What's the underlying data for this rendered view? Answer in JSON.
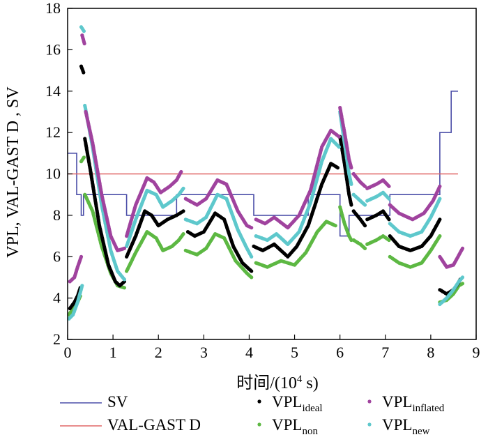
{
  "chart_data": {
    "type": "line",
    "xlabel_main": "时间/(10",
    "xlabel_sup": "4",
    "xlabel_tail": " s)",
    "ylabel": "VPL, VAL-GAST D , SV",
    "xlim": [
      0,
      9
    ],
    "ylim": [
      2,
      18
    ],
    "xticks": [
      0,
      1,
      2,
      3,
      4,
      5,
      6,
      7,
      8,
      9
    ],
    "yticks": [
      2,
      4,
      6,
      8,
      10,
      12,
      14,
      16,
      18
    ],
    "legend_position": "bottom",
    "series": [
      {
        "key": "sv",
        "name": "SV",
        "sub": "",
        "kind": "step",
        "color": "#4b4ea8",
        "points": [
          [
            0,
            11
          ],
          [
            0.2,
            11
          ],
          [
            0.2,
            9
          ],
          [
            0.3,
            9
          ],
          [
            0.3,
            8
          ],
          [
            0.35,
            8
          ],
          [
            0.35,
            9
          ],
          [
            1.3,
            9
          ],
          [
            1.3,
            8
          ],
          [
            2.4,
            8
          ],
          [
            2.4,
            9
          ],
          [
            4.1,
            9
          ],
          [
            4.1,
            8
          ],
          [
            5.3,
            8
          ],
          [
            5.3,
            9
          ],
          [
            6.0,
            9
          ],
          [
            6.0,
            7
          ],
          [
            6.2,
            7
          ],
          [
            6.2,
            8
          ],
          [
            7.1,
            8
          ],
          [
            7.1,
            9
          ],
          [
            8.2,
            9
          ],
          [
            8.2,
            12
          ],
          [
            8.45,
            12
          ],
          [
            8.45,
            14
          ],
          [
            8.6,
            14
          ]
        ]
      },
      {
        "key": "val",
        "name": "VAL-GAST D",
        "sub": "",
        "kind": "hline",
        "color": "#e06666",
        "y": 10,
        "x_range": [
          0,
          8.6
        ]
      },
      {
        "key": "ideal",
        "name": "VPL",
        "sub": "ideal",
        "kind": "dots",
        "color": "#000000",
        "segments": [
          [
            [
              0.05,
              3.5
            ],
            [
              0.15,
              3.8
            ],
            [
              0.22,
              4.1
            ],
            [
              0.28,
              4.5
            ]
          ],
          [
            [
              0.3,
              15.2
            ],
            [
              0.35,
              14.9
            ]
          ],
          [
            [
              0.38,
              11.7
            ],
            [
              0.5,
              10.2
            ],
            [
              0.7,
              7.5
            ],
            [
              0.9,
              5.6
            ],
            [
              1.05,
              4.8
            ],
            [
              1.15,
              4.6
            ],
            [
              1.25,
              4.8
            ]
          ],
          [
            [
              1.3,
              6.0
            ],
            [
              1.5,
              7.0
            ],
            [
              1.7,
              8.2
            ],
            [
              1.85,
              8.0
            ],
            [
              2.0,
              7.5
            ],
            [
              2.2,
              7.8
            ],
            [
              2.4,
              8.0
            ],
            [
              2.55,
              8.2
            ]
          ],
          [
            [
              2.65,
              7.2
            ],
            [
              2.8,
              7.0
            ],
            [
              3.0,
              7.2
            ],
            [
              3.25,
              8.1
            ],
            [
              3.45,
              7.8
            ],
            [
              3.65,
              6.5
            ],
            [
              3.85,
              5.7
            ],
            [
              4.05,
              5.3
            ]
          ],
          [
            [
              4.1,
              6.5
            ],
            [
              4.3,
              6.3
            ],
            [
              4.55,
              6.6
            ],
            [
              4.85,
              6.0
            ],
            [
              5.05,
              6.5
            ],
            [
              5.3,
              7.5
            ],
            [
              5.6,
              9.5
            ],
            [
              5.8,
              10.5
            ],
            [
              5.95,
              10.3
            ]
          ],
          [
            [
              6.0,
              11.8
            ],
            [
              6.1,
              10.5
            ],
            [
              6.2,
              9.0
            ],
            [
              6.25,
              8.5
            ]
          ],
          [
            [
              6.3,
              8.2
            ],
            [
              6.45,
              7.8
            ],
            [
              6.55,
              7.5
            ]
          ],
          [
            [
              6.6,
              7.8
            ],
            [
              6.8,
              8.0
            ],
            [
              6.95,
              8.2
            ],
            [
              7.08,
              7.8
            ]
          ],
          [
            [
              7.1,
              7.0
            ],
            [
              7.3,
              6.5
            ],
            [
              7.55,
              6.3
            ],
            [
              7.8,
              6.5
            ],
            [
              8.0,
              7.0
            ],
            [
              8.2,
              7.8
            ]
          ],
          [
            [
              8.2,
              4.4
            ],
            [
              8.35,
              4.2
            ],
            [
              8.5,
              4.4
            ],
            [
              8.6,
              4.7
            ],
            [
              8.65,
              4.9
            ]
          ]
        ]
      },
      {
        "key": "inflated",
        "name": "VPL",
        "sub": "inflated",
        "kind": "dots",
        "color": "#a0439e",
        "segments": [
          [
            [
              0.05,
              4.8
            ],
            [
              0.15,
              5.0
            ],
            [
              0.22,
              5.5
            ],
            [
              0.3,
              6.0
            ]
          ],
          [
            [
              0.32,
              16.7
            ],
            [
              0.37,
              16.3
            ]
          ],
          [
            [
              0.4,
              13.0
            ],
            [
              0.55,
              11.5
            ],
            [
              0.75,
              9.0
            ],
            [
              0.95,
              7.0
            ],
            [
              1.1,
              6.3
            ],
            [
              1.25,
              6.4
            ]
          ],
          [
            [
              1.3,
              7.0
            ],
            [
              1.5,
              8.5
            ],
            [
              1.75,
              9.8
            ],
            [
              1.9,
              9.6
            ],
            [
              2.05,
              9.1
            ],
            [
              2.25,
              9.4
            ],
            [
              2.4,
              9.7
            ],
            [
              2.5,
              10.1
            ]
          ],
          [
            [
              2.6,
              8.8
            ],
            [
              2.85,
              8.5
            ],
            [
              3.05,
              8.8
            ],
            [
              3.3,
              9.7
            ],
            [
              3.5,
              9.5
            ],
            [
              3.75,
              8.2
            ],
            [
              3.95,
              7.5
            ],
            [
              4.05,
              7.4
            ]
          ],
          [
            [
              4.15,
              7.8
            ],
            [
              4.35,
              7.6
            ],
            [
              4.55,
              7.9
            ],
            [
              4.85,
              7.4
            ],
            [
              5.1,
              8.0
            ],
            [
              5.35,
              9.2
            ],
            [
              5.6,
              11.3
            ],
            [
              5.8,
              12.1
            ],
            [
              5.98,
              11.8
            ]
          ],
          [
            [
              6.0,
              13.2
            ],
            [
              6.1,
              12.0
            ],
            [
              6.2,
              10.7
            ],
            [
              6.25,
              10.3
            ]
          ],
          [
            [
              6.3,
              10.0
            ],
            [
              6.45,
              9.6
            ],
            [
              6.55,
              9.4
            ]
          ],
          [
            [
              6.6,
              9.3
            ],
            [
              6.8,
              9.5
            ],
            [
              6.95,
              9.7
            ],
            [
              7.08,
              9.4
            ]
          ],
          [
            [
              7.1,
              8.5
            ],
            [
              7.3,
              8.1
            ],
            [
              7.6,
              7.8
            ],
            [
              7.85,
              8.1
            ],
            [
              8.05,
              8.7
            ],
            [
              8.2,
              9.4
            ]
          ],
          [
            [
              8.2,
              6.0
            ],
            [
              8.35,
              5.5
            ],
            [
              8.5,
              5.6
            ],
            [
              8.6,
              6.0
            ],
            [
              8.7,
              6.4
            ]
          ]
        ]
      },
      {
        "key": "non",
        "name": "VPL",
        "sub": "non",
        "kind": "dots",
        "color": "#5db843",
        "segments": [
          [
            [
              0.03,
              3.2
            ],
            [
              0.12,
              3.5
            ],
            [
              0.22,
              3.8
            ],
            [
              0.28,
              4.1
            ]
          ],
          [
            [
              0.3,
              10.6
            ],
            [
              0.36,
              10.8
            ]
          ],
          [
            [
              0.38,
              9.0
            ],
            [
              0.55,
              8.2
            ],
            [
              0.75,
              6.5
            ],
            [
              0.95,
              5.2
            ],
            [
              1.1,
              4.6
            ],
            [
              1.25,
              4.5
            ]
          ],
          [
            [
              1.3,
              5.3
            ],
            [
              1.5,
              6.2
            ],
            [
              1.75,
              7.2
            ],
            [
              1.95,
              6.9
            ],
            [
              2.1,
              6.3
            ],
            [
              2.3,
              6.5
            ],
            [
              2.45,
              6.8
            ],
            [
              2.55,
              7.1
            ]
          ],
          [
            [
              2.6,
              6.3
            ],
            [
              2.85,
              6.1
            ],
            [
              3.05,
              6.4
            ],
            [
              3.25,
              7.1
            ],
            [
              3.45,
              6.9
            ],
            [
              3.7,
              5.8
            ],
            [
              3.95,
              5.2
            ],
            [
              4.05,
              5.0
            ]
          ],
          [
            [
              4.15,
              5.7
            ],
            [
              4.4,
              5.5
            ],
            [
              4.7,
              5.8
            ],
            [
              5.0,
              5.6
            ],
            [
              5.25,
              6.2
            ],
            [
              5.5,
              7.2
            ],
            [
              5.7,
              7.7
            ],
            [
              5.9,
              7.5
            ]
          ],
          [
            [
              6.0,
              8.4
            ],
            [
              6.1,
              7.6
            ],
            [
              6.2,
              7.0
            ],
            [
              6.25,
              6.8
            ]
          ],
          [
            [
              6.3,
              6.8
            ],
            [
              6.45,
              6.6
            ],
            [
              6.55,
              6.4
            ]
          ],
          [
            [
              6.6,
              6.6
            ],
            [
              6.8,
              6.8
            ],
            [
              6.95,
              7.0
            ],
            [
              7.08,
              6.8
            ]
          ],
          [
            [
              7.1,
              6.0
            ],
            [
              7.3,
              5.7
            ],
            [
              7.55,
              5.5
            ],
            [
              7.8,
              5.7
            ],
            [
              8.0,
              6.3
            ],
            [
              8.2,
              7.0
            ]
          ],
          [
            [
              8.2,
              3.8
            ],
            [
              8.35,
              3.9
            ],
            [
              8.5,
              4.2
            ],
            [
              8.62,
              4.6
            ],
            [
              8.7,
              4.7
            ]
          ]
        ]
      },
      {
        "key": "new",
        "name": "VPL",
        "sub": "new",
        "kind": "dots",
        "color": "#5ec8cc",
        "segments": [
          [
            [
              0.03,
              3.0
            ],
            [
              0.12,
              3.2
            ],
            [
              0.22,
              3.8
            ],
            [
              0.32,
              4.6
            ]
          ],
          [
            [
              0.3,
              17.1
            ],
            [
              0.36,
              16.9
            ]
          ],
          [
            [
              0.38,
              13.3
            ],
            [
              0.55,
              11.3
            ],
            [
              0.75,
              8.5
            ],
            [
              0.95,
              6.3
            ],
            [
              1.1,
              5.3
            ],
            [
              1.25,
              4.9
            ]
          ],
          [
            [
              1.3,
              6.5
            ],
            [
              1.5,
              7.8
            ],
            [
              1.75,
              9.2
            ],
            [
              1.95,
              9.0
            ],
            [
              2.1,
              8.4
            ],
            [
              2.3,
              8.7
            ],
            [
              2.45,
              9.0
            ],
            [
              2.55,
              9.3
            ]
          ],
          [
            [
              2.6,
              7.8
            ],
            [
              2.85,
              7.6
            ],
            [
              3.05,
              7.9
            ],
            [
              3.3,
              9.0
            ],
            [
              3.5,
              8.8
            ],
            [
              3.75,
              7.3
            ],
            [
              3.95,
              6.4
            ],
            [
              4.05,
              6.0
            ]
          ],
          [
            [
              4.15,
              7.0
            ],
            [
              4.4,
              6.8
            ],
            [
              4.6,
              7.1
            ],
            [
              4.85,
              6.6
            ],
            [
              5.1,
              7.2
            ],
            [
              5.35,
              8.6
            ],
            [
              5.6,
              10.6
            ],
            [
              5.8,
              11.7
            ],
            [
              5.98,
              11.3
            ]
          ],
          [
            [
              6.0,
              13.0
            ],
            [
              6.1,
              11.5
            ],
            [
              6.2,
              10.0
            ],
            [
              6.25,
              9.5
            ]
          ],
          [
            [
              6.3,
              9.0
            ],
            [
              6.45,
              8.7
            ],
            [
              6.55,
              8.5
            ]
          ],
          [
            [
              6.6,
              8.7
            ],
            [
              6.8,
              8.9
            ],
            [
              6.95,
              9.1
            ],
            [
              7.08,
              8.8
            ]
          ],
          [
            [
              7.1,
              7.6
            ],
            [
              7.3,
              7.2
            ],
            [
              7.55,
              7.0
            ],
            [
              7.8,
              7.2
            ],
            [
              8.0,
              7.9
            ],
            [
              8.2,
              8.8
            ]
          ],
          [
            [
              8.2,
              3.7
            ],
            [
              8.35,
              4.0
            ],
            [
              8.5,
              4.4
            ],
            [
              8.62,
              4.8
            ],
            [
              8.7,
              5.0
            ]
          ]
        ]
      }
    ]
  }
}
